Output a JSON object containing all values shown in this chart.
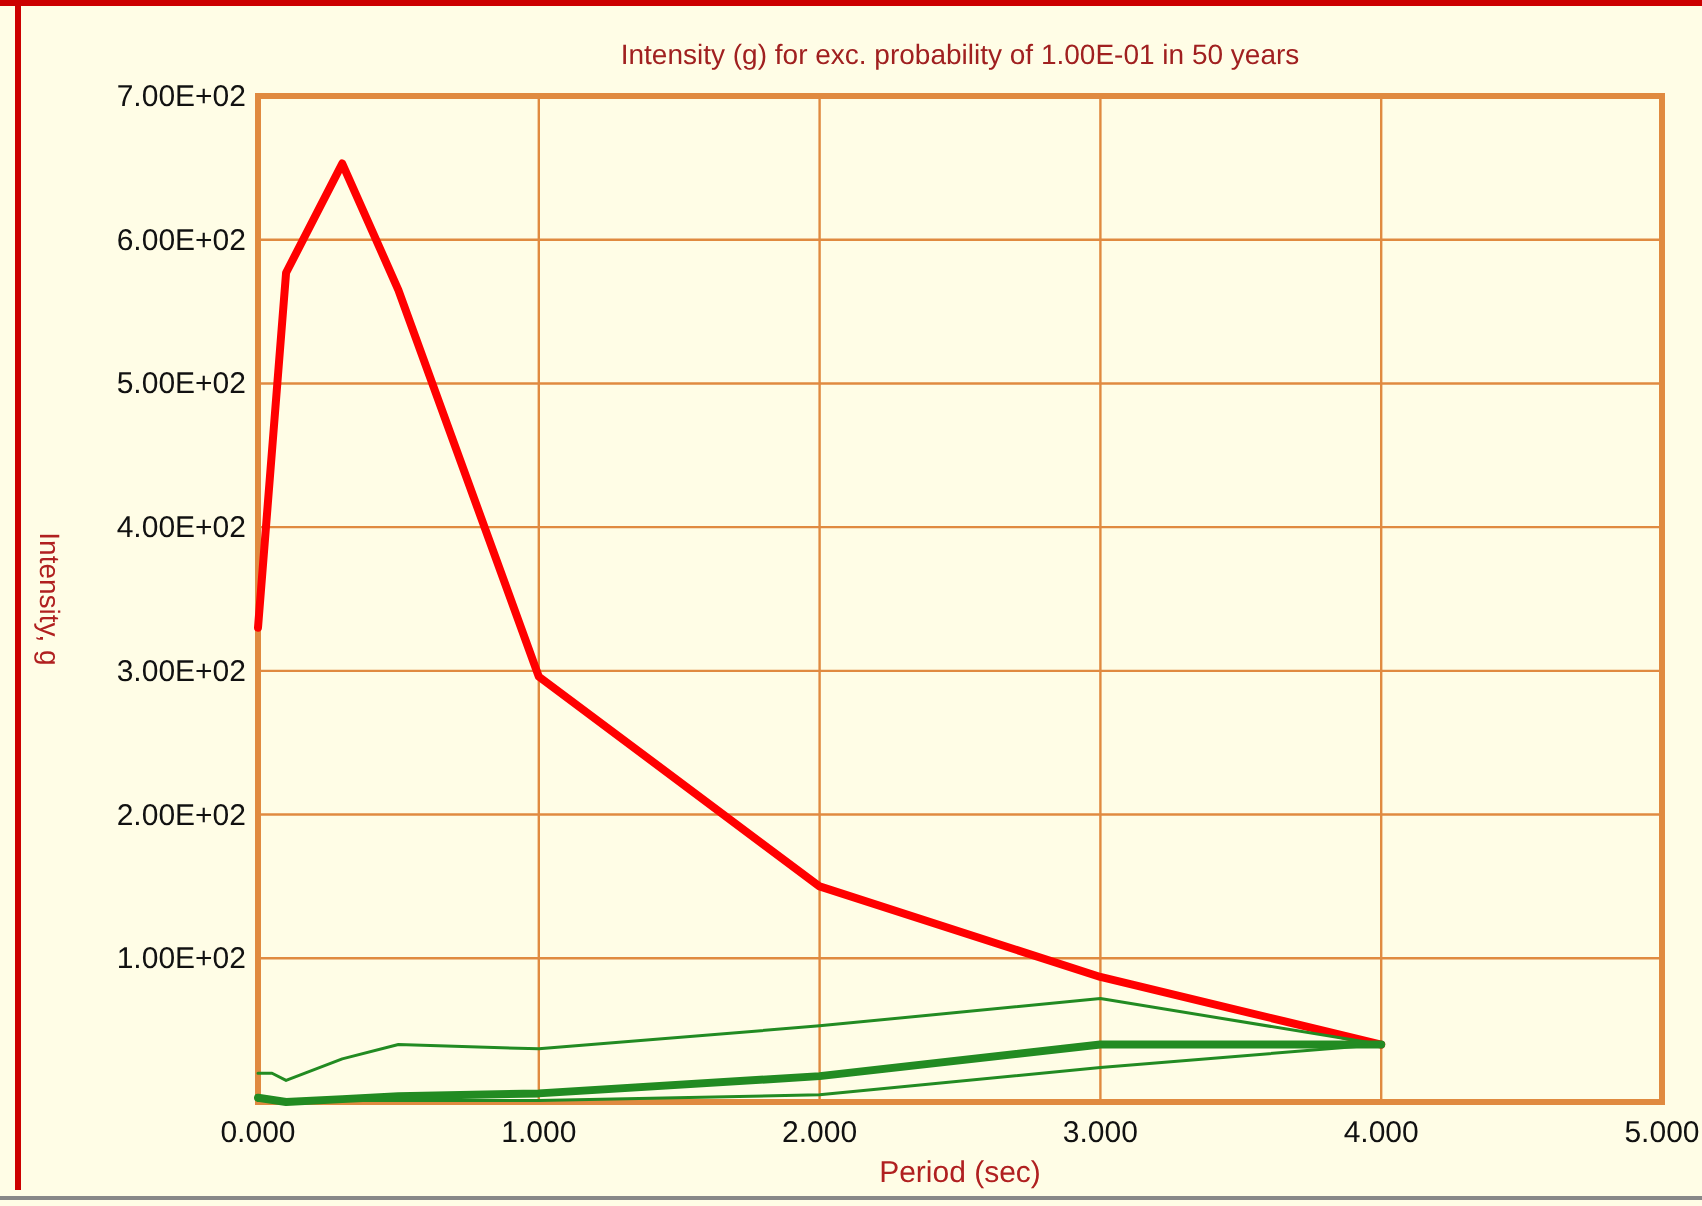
{
  "chart_data": {
    "type": "line",
    "title": "Intensity (g) for exc. probability of 1.00E-01 in 50 years",
    "xlabel": "Period (sec)",
    "ylabel": "Intensity, g",
    "xlim": [
      0,
      5
    ],
    "xticks": [
      {
        "value": 0,
        "label": "0.000"
      },
      {
        "value": 1,
        "label": "1.000"
      },
      {
        "value": 2,
        "label": "2.000"
      },
      {
        "value": 3,
        "label": "3.000"
      },
      {
        "value": 4,
        "label": "4.000"
      },
      {
        "value": 5,
        "label": "5.000"
      }
    ],
    "ylim": [
      0,
      700
    ],
    "yticks": [
      {
        "value": 100,
        "label": "1.00E+02"
      },
      {
        "value": 200,
        "label": "2.00E+02"
      },
      {
        "value": 300,
        "label": "3.00E+02"
      },
      {
        "value": 400,
        "label": "4.00E+02"
      },
      {
        "value": 500,
        "label": "5.00E+02"
      },
      {
        "value": 600,
        "label": "6.00E+02"
      },
      {
        "value": 700,
        "label": "7.00E+02"
      }
    ],
    "grid": true,
    "series": [
      {
        "color": "#ff0000",
        "x": [
          0,
          0.1,
          0.3,
          0.5,
          1,
          2,
          3,
          4
        ],
        "values": [
          330,
          577,
          653,
          565,
          296,
          150,
          87,
          40
        ]
      },
      {
        "color": "#228b22",
        "x": [
          0,
          0.05,
          0.1,
          0.3,
          0.5,
          1,
          2,
          3,
          4
        ],
        "values": [
          20,
          20,
          15,
          30,
          40,
          37,
          53,
          72,
          40
        ]
      },
      {
        "color": "#228b22",
        "x": [
          0,
          0.1,
          0.3,
          0.5,
          1,
          2,
          3,
          4
        ],
        "values": [
          3,
          0,
          2,
          4,
          6,
          18,
          40,
          40
        ]
      },
      {
        "color": "#228b22",
        "x": [
          0,
          1,
          2,
          3,
          4
        ],
        "values": [
          1,
          1,
          5,
          24,
          40
        ]
      }
    ]
  }
}
